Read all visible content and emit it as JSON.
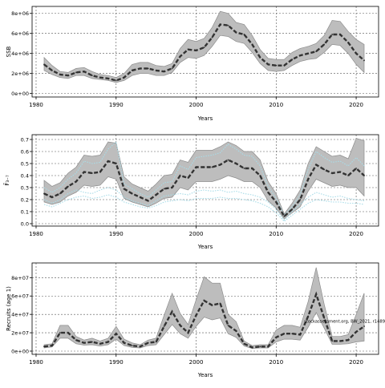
{
  "chart_data": [
    {
      "type": "line",
      "id": "ssb",
      "ylabel": "SSB",
      "xlabel": "Years",
      "xlim": [
        1979.5,
        2022.8
      ],
      "ylim": [
        -0.35,
        8.7
      ],
      "ytick_values": [
        0,
        2,
        4,
        6,
        8
      ],
      "ytick_labels": [
        "0e+00",
        "2e+06",
        "4e+06",
        "6e+06",
        "8e+06"
      ],
      "xtick_values": [
        1980,
        1990,
        2000,
        2010,
        2020
      ],
      "xtick_labels": [
        "1980",
        "1990",
        "2000",
        "2010",
        "2020"
      ],
      "grid": true,
      "band_color": "#bdbdbd",
      "line_color": "#333333",
      "x": [
        1981,
        1982,
        1983,
        1984,
        1985,
        1986,
        1987,
        1988,
        1989,
        1990,
        1991,
        1992,
        1993,
        1994,
        1995,
        1996,
        1997,
        1998,
        1999,
        2000,
        2001,
        2002,
        2003,
        2004,
        2005,
        2006,
        2007,
        2008,
        2009,
        2010,
        2011,
        2012,
        2013,
        2014,
        2015,
        2016,
        2017,
        2018,
        2019,
        2020,
        2021
      ],
      "series": [
        {
          "role": "estimate",
          "values": [
            2.9,
            2.3,
            1.9,
            1.8,
            2.1,
            2.2,
            1.8,
            1.6,
            1.5,
            1.3,
            1.6,
            2.3,
            2.5,
            2.5,
            2.3,
            2.2,
            2.5,
            3.7,
            4.4,
            4.3,
            4.6,
            5.6,
            6.9,
            6.8,
            6.1,
            5.9,
            4.9,
            3.6,
            2.9,
            2.8,
            2.8,
            3.4,
            3.8,
            4.0,
            4.2,
            4.9,
            5.9,
            5.9,
            5.1,
            4.0,
            3.3
          ]
        },
        {
          "role": "upper",
          "values": [
            3.6,
            2.8,
            2.2,
            2.1,
            2.5,
            2.6,
            2.2,
            1.9,
            1.8,
            1.6,
            2.0,
            2.9,
            3.1,
            3.1,
            2.8,
            2.7,
            3.0,
            4.5,
            5.4,
            5.2,
            5.5,
            6.6,
            8.2,
            8.0,
            7.1,
            6.9,
            5.8,
            4.4,
            3.5,
            3.4,
            3.4,
            4.1,
            4.5,
            4.7,
            5.0,
            5.8,
            7.3,
            7.2,
            6.2,
            5.4,
            4.9
          ]
        },
        {
          "role": "lower",
          "values": [
            2.3,
            1.9,
            1.6,
            1.5,
            1.8,
            1.8,
            1.5,
            1.4,
            1.3,
            1.1,
            1.3,
            1.8,
            2.0,
            2.0,
            1.8,
            1.8,
            2.1,
            3.1,
            3.6,
            3.5,
            3.8,
            4.7,
            5.8,
            5.7,
            5.2,
            5.0,
            4.1,
            3.0,
            2.3,
            2.2,
            2.3,
            2.8,
            3.2,
            3.4,
            3.5,
            4.1,
            4.9,
            4.8,
            4.0,
            2.9,
            2.1
          ]
        }
      ]
    },
    {
      "type": "line",
      "id": "fbar",
      "ylabel": "F̄₃₋₇",
      "xlabel": "Years",
      "xlim": [
        1979.5,
        2022.8
      ],
      "ylim": [
        -0.02,
        0.74
      ],
      "ytick_values": [
        0,
        0.1,
        0.2,
        0.3,
        0.4,
        0.5,
        0.6,
        0.7
      ],
      "ytick_labels": [
        "0.0",
        "0.1",
        "0.2",
        "0.3",
        "0.4",
        "0.5",
        "0.6",
        "0.7"
      ],
      "xtick_values": [
        1980,
        1990,
        2000,
        2010,
        2020
      ],
      "xtick_labels": [
        "1980",
        "1990",
        "2000",
        "2010",
        "2020"
      ],
      "grid": true,
      "band_color": "#bdbdbd",
      "line_color": "#333333",
      "fleet_color": "#a8dce8",
      "x": [
        1981,
        1982,
        1983,
        1984,
        1985,
        1986,
        1987,
        1988,
        1989,
        1990,
        1991,
        1992,
        1993,
        1994,
        1995,
        1996,
        1997,
        1998,
        1999,
        2000,
        2001,
        2002,
        2003,
        2004,
        2005,
        2006,
        2007,
        2008,
        2009,
        2010,
        2011,
        2012,
        2013,
        2014,
        2015,
        2016,
        2017,
        2018,
        2019,
        2020,
        2021
      ],
      "series": [
        {
          "role": "estimate",
          "values": [
            0.25,
            0.22,
            0.25,
            0.31,
            0.35,
            0.43,
            0.42,
            0.43,
            0.52,
            0.5,
            0.29,
            0.25,
            0.22,
            0.19,
            0.24,
            0.29,
            0.3,
            0.4,
            0.38,
            0.47,
            0.47,
            0.47,
            0.49,
            0.53,
            0.5,
            0.46,
            0.46,
            0.4,
            0.26,
            0.18,
            0.06,
            0.12,
            0.2,
            0.37,
            0.49,
            0.45,
            0.42,
            0.43,
            0.4,
            0.46,
            0.4
          ]
        },
        {
          "role": "upper",
          "values": [
            0.36,
            0.31,
            0.34,
            0.42,
            0.47,
            0.57,
            0.56,
            0.57,
            0.68,
            0.67,
            0.39,
            0.33,
            0.3,
            0.27,
            0.33,
            0.4,
            0.41,
            0.53,
            0.51,
            0.61,
            0.61,
            0.61,
            0.64,
            0.68,
            0.65,
            0.6,
            0.6,
            0.53,
            0.35,
            0.25,
            0.08,
            0.17,
            0.28,
            0.5,
            0.64,
            0.6,
            0.56,
            0.57,
            0.54,
            0.71,
            0.69
          ]
        },
        {
          "role": "lower",
          "values": [
            0.18,
            0.16,
            0.18,
            0.23,
            0.26,
            0.32,
            0.31,
            0.32,
            0.39,
            0.37,
            0.21,
            0.18,
            0.16,
            0.14,
            0.17,
            0.21,
            0.22,
            0.3,
            0.28,
            0.35,
            0.35,
            0.35,
            0.37,
            0.4,
            0.38,
            0.35,
            0.35,
            0.3,
            0.19,
            0.13,
            0.04,
            0.09,
            0.14,
            0.27,
            0.37,
            0.34,
            0.31,
            0.32,
            0.3,
            0.3,
            0.23
          ]
        },
        {
          "role": "fleet",
          "values": [
            0.3,
            0.26,
            0.3,
            0.37,
            0.42,
            0.52,
            0.5,
            0.51,
            0.62,
            0.68,
            0.33,
            0.29,
            0.25,
            0.22,
            0.28,
            0.34,
            0.35,
            0.48,
            0.45,
            0.55,
            0.56,
            0.57,
            0.59,
            0.66,
            0.62,
            0.57,
            0.56,
            0.48,
            0.31,
            0.21,
            0.07,
            0.14,
            0.24,
            0.45,
            0.6,
            0.55,
            0.51,
            0.52,
            0.48,
            0.55,
            0.48
          ]
        },
        {
          "role": "fleet",
          "values": [
            0.2,
            0.17,
            0.2,
            0.25,
            0.28,
            0.26,
            0.25,
            0.28,
            0.3,
            0.28,
            0.22,
            0.19,
            0.17,
            0.15,
            0.19,
            0.23,
            0.24,
            0.25,
            0.24,
            0.27,
            0.28,
            0.27,
            0.28,
            0.26,
            0.27,
            0.25,
            0.24,
            0.22,
            0.18,
            0.12,
            0.03,
            0.1,
            0.16,
            0.22,
            0.26,
            0.24,
            0.22,
            0.23,
            0.21,
            0.2,
            0.19
          ]
        },
        {
          "role": "fleet",
          "values": [
            0.16,
            0.14,
            0.17,
            0.2,
            0.22,
            0.23,
            0.21,
            0.22,
            0.24,
            0.22,
            0.18,
            0.16,
            0.14,
            0.13,
            0.15,
            0.18,
            0.19,
            0.2,
            0.19,
            0.21,
            0.21,
            0.21,
            0.22,
            0.21,
            0.21,
            0.2,
            0.19,
            0.17,
            0.14,
            0.09,
            0.02,
            0.07,
            0.12,
            0.17,
            0.2,
            0.19,
            0.18,
            0.18,
            0.17,
            0.17,
            0.16
          ]
        }
      ]
    },
    {
      "type": "line",
      "id": "recruits",
      "ylabel": "Recruits (age 1)",
      "xlabel": "Years",
      "xlim": [
        1979.5,
        2022.8
      ],
      "ylim": [
        -0.35,
        9.6
      ],
      "ytick_values": [
        0,
        2,
        4,
        6,
        8
      ],
      "ytick_labels": [
        "0e+00",
        "2e+07",
        "4e+07",
        "6e+07",
        "8e+07"
      ],
      "xtick_values": [
        1980,
        1990,
        2000,
        2010,
        2020
      ],
      "xtick_labels": [
        "1980",
        "1990",
        "2000",
        "2010",
        "2020"
      ],
      "grid": true,
      "band_color": "#bdbdbd",
      "line_color": "#333333",
      "annotation": "stockassessment.org, BW_2021, r1489",
      "x": [
        1981,
        1982,
        1983,
        1984,
        1985,
        1986,
        1987,
        1988,
        1989,
        1990,
        1991,
        1992,
        1993,
        1994,
        1995,
        1996,
        1997,
        1998,
        1999,
        2000,
        2001,
        2002,
        2003,
        2004,
        2005,
        2006,
        2007,
        2008,
        2009,
        2010,
        2011,
        2012,
        2013,
        2014,
        2015,
        2016,
        2017,
        2018,
        2019,
        2020,
        2021
      ],
      "series": [
        {
          "role": "estimate",
          "values": [
            0.5,
            0.6,
            2.0,
            2.0,
            1.2,
            0.9,
            1.0,
            0.8,
            1.0,
            1.9,
            0.9,
            0.6,
            0.5,
            0.9,
            1.0,
            2.7,
            4.3,
            2.8,
            2.0,
            3.9,
            5.5,
            5.0,
            5.2,
            2.8,
            2.2,
            0.8,
            0.4,
            0.5,
            0.5,
            1.5,
            1.9,
            1.9,
            1.8,
            3.8,
            6.2,
            3.6,
            1.1,
            1.1,
            1.2,
            2.1,
            2.7
          ]
        },
        {
          "role": "upper",
          "values": [
            0.7,
            0.8,
            2.8,
            2.8,
            1.6,
            1.2,
            1.4,
            1.1,
            1.4,
            2.7,
            1.3,
            0.9,
            0.7,
            1.2,
            1.4,
            3.9,
            6.3,
            4.1,
            2.9,
            5.6,
            8.1,
            7.4,
            7.4,
            4.0,
            3.2,
            1.1,
            0.6,
            0.7,
            0.7,
            2.3,
            2.8,
            2.8,
            2.6,
            5.4,
            9.1,
            5.1,
            1.6,
            1.6,
            1.8,
            4.0,
            6.3
          ]
        },
        {
          "role": "lower",
          "values": [
            0.35,
            0.45,
            1.4,
            1.4,
            0.8,
            0.65,
            0.7,
            0.55,
            0.7,
            1.3,
            0.6,
            0.4,
            0.35,
            0.6,
            0.7,
            1.8,
            2.9,
            1.9,
            1.4,
            2.7,
            3.7,
            3.4,
            3.6,
            1.9,
            1.5,
            0.55,
            0.3,
            0.35,
            0.35,
            1.0,
            1.3,
            1.3,
            1.2,
            2.6,
            4.2,
            2.5,
            0.75,
            0.75,
            0.8,
            1.0,
            1.1
          ]
        }
      ]
    }
  ]
}
